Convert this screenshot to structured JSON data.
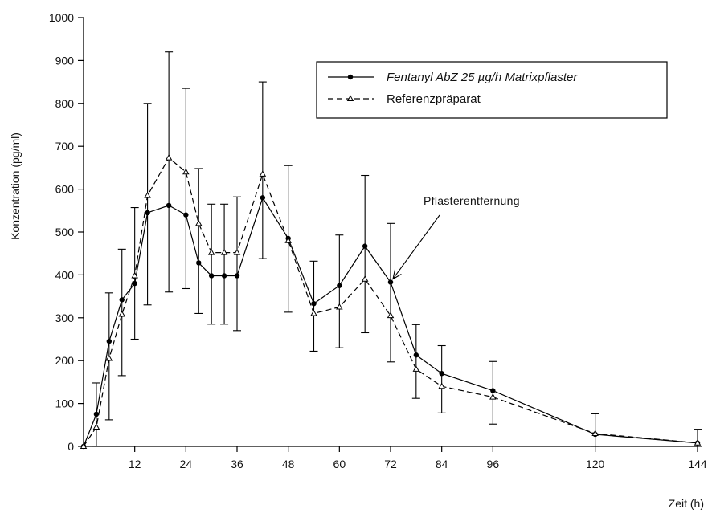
{
  "chart_data": {
    "type": "line",
    "title": "",
    "xlabel": "Zeit (h)",
    "ylabel": "Konzentration (pg/ml)",
    "xlim": [
      0,
      144
    ],
    "ylim": [
      0,
      1000
    ],
    "xticks": [
      12,
      24,
      36,
      48,
      60,
      72,
      84,
      96,
      120,
      144
    ],
    "yticks": [
      0,
      100,
      200,
      300,
      400,
      500,
      600,
      700,
      800,
      900,
      1000
    ],
    "grid": false,
    "legend_position": "top-right",
    "series": [
      {
        "name": "Fentanyl AbZ 25 µg/h Matrixpflaster",
        "marker": "filled-circle",
        "line": "solid",
        "color": "#000000",
        "x": [
          0,
          3,
          6,
          9,
          12,
          15,
          20,
          24,
          27,
          30,
          33,
          36,
          42,
          48,
          54,
          60,
          66,
          72,
          78,
          84,
          96,
          120,
          144
        ],
        "y": [
          0,
          75,
          245,
          342,
          380,
          545,
          562,
          540,
          428,
          398,
          398,
          398,
          580,
          485,
          333,
          375,
          467,
          383,
          213,
          170,
          130,
          28,
          8
        ]
      },
      {
        "name": "Referenzpräparat",
        "marker": "open-triangle",
        "line": "dashed",
        "color": "#000000",
        "x": [
          0,
          3,
          6,
          9,
          12,
          15,
          20,
          24,
          27,
          30,
          33,
          36,
          42,
          48,
          54,
          60,
          66,
          72,
          78,
          84,
          96,
          120,
          144
        ],
        "y": [
          0,
          45,
          205,
          308,
          398,
          585,
          673,
          640,
          520,
          452,
          452,
          452,
          635,
          480,
          310,
          325,
          390,
          305,
          180,
          140,
          115,
          30,
          8
        ]
      }
    ],
    "error_bars": {
      "x": [
        3,
        6,
        9,
        12,
        15,
        20,
        24,
        27,
        30,
        33,
        36,
        42,
        48,
        54,
        60,
        66,
        72,
        78,
        84,
        96,
        120,
        144
      ],
      "low": [
        0,
        62,
        165,
        250,
        330,
        360,
        368,
        310,
        285,
        285,
        270,
        438,
        313,
        222,
        230,
        265,
        197,
        112,
        78,
        52,
        0,
        0
      ],
      "high": [
        148,
        358,
        460,
        557,
        800,
        920,
        835,
        648,
        565,
        565,
        582,
        850,
        655,
        432,
        493,
        632,
        520,
        284,
        235,
        198,
        76,
        40
      ]
    },
    "annotation": {
      "text": "Pflasterentfernung",
      "arrow_to": [
        72,
        383
      ]
    }
  }
}
